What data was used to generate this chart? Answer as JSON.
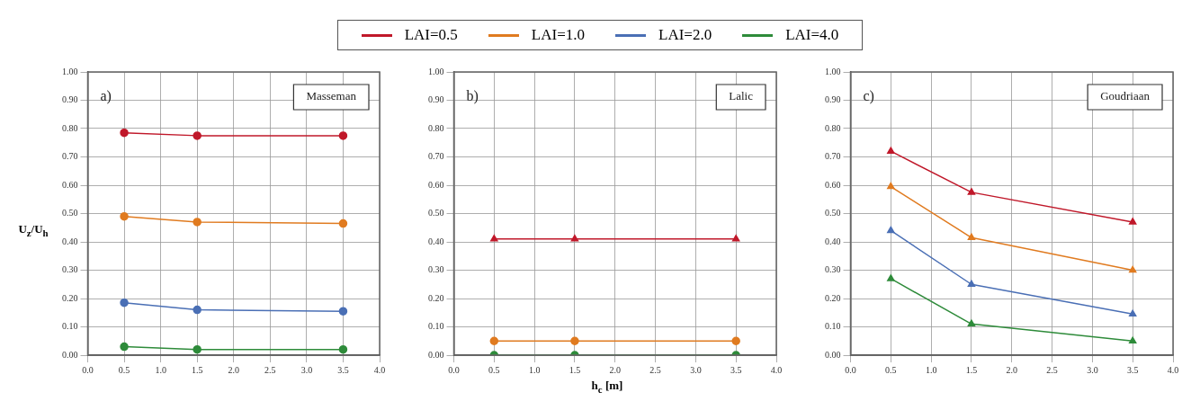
{
  "chart_data": [
    {
      "type": "line",
      "x": [
        0.5,
        1.5,
        3.5
      ],
      "ylabel": "U$_{z}$/U$_{h}$",
      "marker": "circle",
      "grid": true,
      "legend": "top",
      "annotations": [
        "a)",
        "Masseman"
      ],
      "xlim": [
        0,
        4
      ],
      "xticks": [
        {
          "value": 0,
          "label": "0.0"
        },
        {
          "value": 0.5,
          "label": "0.5"
        },
        {
          "value": 1,
          "label": "1.0"
        },
        {
          "value": 1.5,
          "label": "1.5"
        },
        {
          "value": 2,
          "label": "2.0"
        },
        {
          "value": 2.5,
          "label": "2.5"
        },
        {
          "value": 3,
          "label": "3.0"
        },
        {
          "value": 3.5,
          "label": "3.5"
        },
        {
          "value": 4,
          "label": "4.0"
        }
      ],
      "ylim": [
        0,
        1
      ],
      "yticks": [
        {
          "value": 0,
          "label": "0.00"
        },
        {
          "value": 0.1,
          "label": "0.10"
        },
        {
          "value": 0.2,
          "label": "0.20"
        },
        {
          "value": 0.3,
          "label": "0.30"
        },
        {
          "value": 0.4,
          "label": "0.40"
        },
        {
          "value": 0.5,
          "label": "0.50"
        },
        {
          "value": 0.6,
          "label": "0.60"
        },
        {
          "value": 0.7,
          "label": "0.70"
        },
        {
          "value": 0.8,
          "label": "0.80"
        },
        {
          "value": 0.9,
          "label": "0.90"
        },
        {
          "value": 1,
          "label": "1.00"
        }
      ],
      "series": [
        {
          "name": "LAI=0.5",
          "color": "#c0182a",
          "values": [
            0.785,
            0.775,
            0.775
          ]
        },
        {
          "name": "LAI=1.0",
          "color": "#e07b20",
          "values": [
            0.49,
            0.47,
            0.465
          ]
        },
        {
          "name": "LAI=2.0",
          "color": "#4a6fb5",
          "values": [
            0.185,
            0.16,
            0.155
          ]
        },
        {
          "name": "LAI=4.0",
          "color": "#2e8b3a",
          "values": [
            0.03,
            0.02,
            0.02
          ]
        }
      ]
    },
    {
      "type": "line",
      "x": [
        0.5,
        1.5,
        3.5
      ],
      "xlabel": "h$_{c}$ [m]",
      "marker": "circle",
      "grid": true,
      "annotations": [
        "b)",
        "Lalic"
      ],
      "xlim": [
        0,
        4
      ],
      "xticks": [
        {
          "value": 0,
          "label": "0.0"
        },
        {
          "value": 0.5,
          "label": "0.5"
        },
        {
          "value": 1,
          "label": "1.0"
        },
        {
          "value": 1.5,
          "label": "1.5"
        },
        {
          "value": 2,
          "label": "2.0"
        },
        {
          "value": 2.5,
          "label": "2.5"
        },
        {
          "value": 3,
          "label": "3.0"
        },
        {
          "value": 3.5,
          "label": "3.5"
        },
        {
          "value": 4,
          "label": "4.0"
        }
      ],
      "ylim": [
        0,
        1
      ],
      "yticks": [
        {
          "value": 0,
          "label": "0.00"
        },
        {
          "value": 0.1,
          "label": "0.10"
        },
        {
          "value": 0.2,
          "label": "0.20"
        },
        {
          "value": 0.3,
          "label": "0.30"
        },
        {
          "value": 0.4,
          "label": "0.40"
        },
        {
          "value": 0.5,
          "label": "0.50"
        },
        {
          "value": 0.6,
          "label": "0.60"
        },
        {
          "value": 0.7,
          "label": "0.70"
        },
        {
          "value": 0.8,
          "label": "0.80"
        },
        {
          "value": 0.9,
          "label": "0.90"
        },
        {
          "value": 1,
          "label": "1.00"
        }
      ],
      "series": [
        {
          "name": "LAI=0.5",
          "color": "#c0182a",
          "marker": "triangle",
          "values": [
            0.41,
            0.41,
            0.41
          ]
        },
        {
          "name": "LAI=1.0",
          "color": "#e07b20",
          "values": [
            0.05,
            0.05,
            0.05
          ]
        },
        {
          "name": "LAI=4.0",
          "color": "#2e8b3a",
          "values": [
            0,
            0,
            0
          ]
        }
      ]
    },
    {
      "type": "line",
      "x": [
        0.5,
        1.5,
        3.5
      ],
      "marker": "triangle",
      "grid": true,
      "annotations": [
        "c)",
        "Goudriaan"
      ],
      "xlim": [
        0,
        4
      ],
      "xticks": [
        {
          "value": 0,
          "label": "0.0"
        },
        {
          "value": 0.5,
          "label": "0.5"
        },
        {
          "value": 1,
          "label": "1.0"
        },
        {
          "value": 1.5,
          "label": "1.5"
        },
        {
          "value": 2,
          "label": "2.0"
        },
        {
          "value": 2.5,
          "label": "2.5"
        },
        {
          "value": 3,
          "label": "3.0"
        },
        {
          "value": 3.5,
          "label": "3.5"
        },
        {
          "value": 4,
          "label": "4.0"
        }
      ],
      "ylim": [
        0,
        1
      ],
      "yticks": [
        {
          "value": 0,
          "label": "0.00"
        },
        {
          "value": 0.1,
          "label": "0.10"
        },
        {
          "value": 0.2,
          "label": "0.20"
        },
        {
          "value": 0.3,
          "label": "0.30"
        },
        {
          "value": 0.4,
          "label": "0.40"
        },
        {
          "value": 0.5,
          "label": "0.50"
        },
        {
          "value": 0.6,
          "label": "0.60"
        },
        {
          "value": 0.7,
          "label": "0.70"
        },
        {
          "value": 0.8,
          "label": "0.80"
        },
        {
          "value": 0.9,
          "label": "0.90"
        },
        {
          "value": 1,
          "label": "1.00"
        }
      ],
      "series": [
        {
          "name": "LAI=0.5",
          "color": "#c0182a",
          "values": [
            0.72,
            0.575,
            0.47
          ]
        },
        {
          "name": "LAI=1.0",
          "color": "#e07b20",
          "values": [
            0.595,
            0.415,
            0.3
          ]
        },
        {
          "name": "LAI=2.0",
          "color": "#4a6fb5",
          "values": [
            0.44,
            0.25,
            0.145
          ]
        },
        {
          "name": "LAI=4.0",
          "color": "#2e8b3a",
          "values": [
            0.27,
            0.11,
            0.05
          ]
        }
      ]
    }
  ]
}
